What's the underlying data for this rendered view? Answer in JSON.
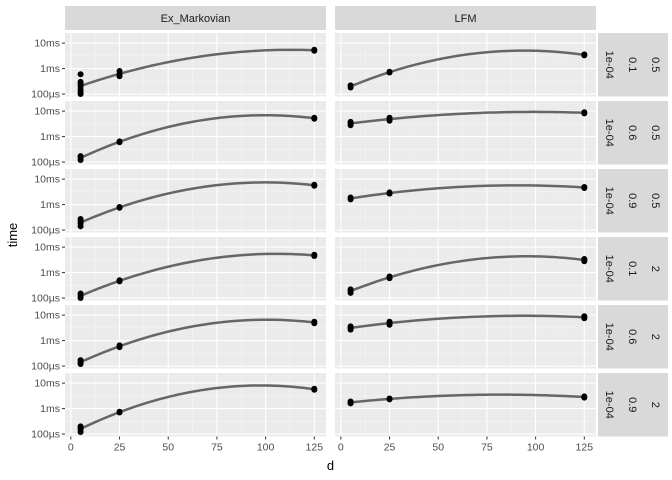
{
  "chart_data": {
    "type": "scatter",
    "facet_cols": [
      "Ex_Markovian",
      "LFM"
    ],
    "facet_rows": [
      [
        "1e-04",
        "0.1",
        "0.5"
      ],
      [
        "1e-04",
        "0.6",
        "0.5"
      ],
      [
        "1e-04",
        "0.9",
        "0.5"
      ],
      [
        "1e-04",
        "0.1",
        "2"
      ],
      [
        "1e-04",
        "0.6",
        "2"
      ],
      [
        "1e-04",
        "0.9",
        "2"
      ]
    ],
    "xlabel": "d",
    "ylabel": "time",
    "x_ticks": [
      0,
      25,
      50,
      75,
      100,
      125
    ],
    "x_tick_labels": [
      "0",
      "25",
      "50",
      "75",
      "100",
      "125"
    ],
    "xlim": [
      -3,
      131
    ],
    "y_scale": "log10",
    "y_unit": "seconds",
    "y_ticks": [
      0.0001,
      0.001,
      0.01
    ],
    "y_tick_labels": [
      "100µs",
      "1ms",
      "10ms"
    ],
    "ylim": [
      8e-05,
      0.025
    ],
    "smooth_line_color": "#666666",
    "point_color": "#000000",
    "panel_background": "#ebebeb",
    "strip_background": "#d9d9d9",
    "panels": [
      {
        "row": 0,
        "col": 0,
        "points": [
          [
            5,
            0.0001
          ],
          [
            5,
            0.00012
          ],
          [
            5,
            0.00015
          ],
          [
            5,
            0.0002
          ],
          [
            5,
            0.00025
          ],
          [
            5,
            0.0003
          ],
          [
            5,
            0.0006
          ],
          [
            25,
            0.0005
          ],
          [
            25,
            0.0006
          ],
          [
            25,
            0.0008
          ],
          [
            125,
            0.005
          ],
          [
            125,
            0.0055
          ]
        ]
      },
      {
        "row": 0,
        "col": 1,
        "points": [
          [
            5,
            0.00018
          ],
          [
            5,
            0.00022
          ],
          [
            25,
            0.0007
          ],
          [
            25,
            0.00075
          ],
          [
            125,
            0.0033
          ],
          [
            125,
            0.0036
          ]
        ]
      },
      {
        "row": 1,
        "col": 0,
        "points": [
          [
            5,
            0.00012
          ],
          [
            5,
            0.00015
          ],
          [
            5,
            0.00017
          ],
          [
            25,
            0.0006
          ],
          [
            25,
            0.00065
          ],
          [
            125,
            0.005
          ],
          [
            125,
            0.0055
          ]
        ]
      },
      {
        "row": 1,
        "col": 1,
        "points": [
          [
            5,
            0.0028
          ],
          [
            5,
            0.0033
          ],
          [
            5,
            0.0038
          ],
          [
            25,
            0.0042
          ],
          [
            25,
            0.005
          ],
          [
            25,
            0.0055
          ],
          [
            125,
            0.0082
          ],
          [
            125,
            0.009
          ]
        ]
      },
      {
        "row": 2,
        "col": 0,
        "points": [
          [
            5,
            0.00014
          ],
          [
            5,
            0.00018
          ],
          [
            5,
            0.00022
          ],
          [
            5,
            0.00027
          ],
          [
            25,
            0.00075
          ],
          [
            25,
            0.0008
          ],
          [
            125,
            0.0055
          ],
          [
            125,
            0.006
          ]
        ]
      },
      {
        "row": 2,
        "col": 1,
        "points": [
          [
            5,
            0.0016
          ],
          [
            5,
            0.0019
          ],
          [
            25,
            0.0027
          ],
          [
            25,
            0.003
          ],
          [
            125,
            0.0045
          ],
          [
            125,
            0.0049
          ]
        ]
      },
      {
        "row": 3,
        "col": 0,
        "points": [
          [
            5,
            0.0001
          ],
          [
            5,
            0.00012
          ],
          [
            5,
            0.00015
          ],
          [
            25,
            0.00045
          ],
          [
            25,
            0.0005
          ],
          [
            125,
            0.0045
          ],
          [
            125,
            0.005
          ]
        ]
      },
      {
        "row": 3,
        "col": 1,
        "points": [
          [
            5,
            0.00016
          ],
          [
            5,
            0.00019
          ],
          [
            5,
            0.00022
          ],
          [
            25,
            0.0006
          ],
          [
            25,
            0.00065
          ],
          [
            25,
            0.0007
          ],
          [
            125,
            0.0028
          ],
          [
            125,
            0.0032
          ],
          [
            125,
            0.0034
          ]
        ]
      },
      {
        "row": 4,
        "col": 0,
        "points": [
          [
            5,
            0.00012
          ],
          [
            5,
            0.00014
          ],
          [
            5,
            0.00017
          ],
          [
            25,
            0.00055
          ],
          [
            25,
            0.00065
          ],
          [
            125,
            0.0048
          ],
          [
            125,
            0.0055
          ]
        ]
      },
      {
        "row": 4,
        "col": 1,
        "points": [
          [
            5,
            0.0027
          ],
          [
            5,
            0.0032
          ],
          [
            5,
            0.0036
          ],
          [
            25,
            0.0042
          ],
          [
            25,
            0.005
          ],
          [
            25,
            0.0055
          ],
          [
            125,
            0.0075
          ],
          [
            125,
            0.0083
          ],
          [
            125,
            0.009
          ]
        ]
      },
      {
        "row": 5,
        "col": 0,
        "points": [
          [
            5,
            0.00012
          ],
          [
            5,
            0.00015
          ],
          [
            5,
            0.00018
          ],
          [
            5,
            0.0002
          ],
          [
            25,
            0.0007
          ],
          [
            25,
            0.00075
          ],
          [
            125,
            0.0055
          ],
          [
            125,
            0.006
          ]
        ]
      },
      {
        "row": 5,
        "col": 1,
        "points": [
          [
            5,
            0.0016
          ],
          [
            5,
            0.00175
          ],
          [
            5,
            0.0019
          ],
          [
            25,
            0.0023
          ],
          [
            25,
            0.0025
          ],
          [
            125,
            0.0027
          ],
          [
            125,
            0.003
          ]
        ]
      }
    ]
  }
}
